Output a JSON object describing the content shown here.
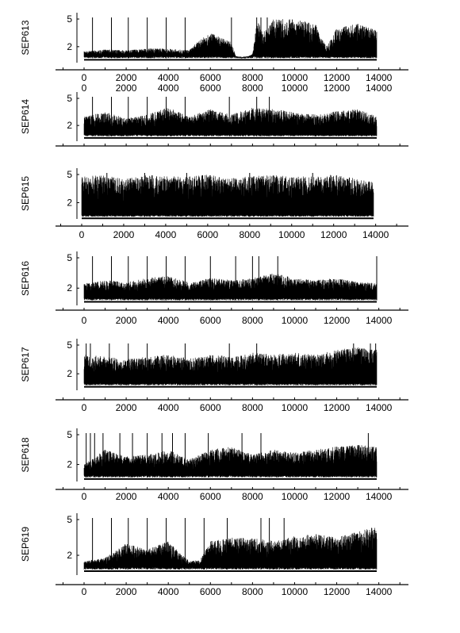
{
  "chart_data": [
    {
      "type": "line",
      "ylabel": "SEP613",
      "x_ticks": [
        0,
        2000,
        4000,
        6000,
        8000,
        10000,
        12000,
        14000
      ],
      "y_ticks": [
        2,
        5
      ],
      "ylim": [
        0,
        5.3
      ],
      "x_range": [
        0,
        13900
      ],
      "baseline": 0.75,
      "envelope_x": [
        0,
        1000,
        2000,
        3000,
        4000,
        5000,
        5500,
        6000,
        6500,
        7000,
        7200,
        7400,
        7600,
        8000,
        8200,
        8500,
        9000,
        10000,
        11000,
        11500,
        12000,
        13000,
        13900
      ],
      "envelope_y": [
        1.5,
        1.7,
        1.6,
        1.8,
        1.8,
        1.6,
        2.8,
        3.5,
        3.0,
        2.5,
        1.0,
        0.8,
        0.8,
        1.2,
        5.0,
        3.5,
        5.0,
        5.0,
        4.5,
        2.0,
        4.0,
        4.5,
        3.8
      ],
      "spikes": [
        400,
        1300,
        2100,
        3000,
        3900,
        4800,
        7000,
        8200,
        8400,
        8700
      ]
    },
    {
      "type": "line",
      "ylabel": "SEP614",
      "x_ticks": [
        0,
        2000,
        4000,
        6000,
        8000,
        10000,
        12000,
        14000
      ],
      "y_ticks": [
        2,
        5
      ],
      "ylim": [
        0,
        5.3
      ],
      "x_range": [
        0,
        13900
      ],
      "baseline": 0.8,
      "envelope_x": [
        0,
        1000,
        2000,
        3000,
        4000,
        5000,
        6000,
        7000,
        8000,
        9000,
        10000,
        11000,
        12000,
        13000,
        13900
      ],
      "envelope_y": [
        3.0,
        3.5,
        2.8,
        3.2,
        4.0,
        3.0,
        3.8,
        3.2,
        4.0,
        3.8,
        3.5,
        3.2,
        3.6,
        3.8,
        3.0
      ],
      "spikes": [
        400,
        1300,
        2100,
        3000,
        3900,
        4800,
        6900,
        8200,
        8800
      ]
    },
    {
      "type": "line",
      "ylabel": "SEP615",
      "x_ticks": [
        0,
        2000,
        4000,
        6000,
        8000,
        10000,
        12000,
        14000
      ],
      "y_ticks": [
        2,
        5
      ],
      "ylim": [
        0,
        5.3
      ],
      "x_range": [
        0,
        13900
      ],
      "baseline": 0.5,
      "envelope_x": [
        0,
        1000,
        2000,
        3000,
        4000,
        5000,
        6000,
        7000,
        8000,
        9000,
        10000,
        11000,
        12000,
        13000,
        13900
      ],
      "envelope_y": [
        4.8,
        5.0,
        4.5,
        5.0,
        4.8,
        4.8,
        5.0,
        4.6,
        4.8,
        5.0,
        4.8,
        4.8,
        5.0,
        4.6,
        4.2
      ],
      "spikes": [
        1200,
        3000,
        5000,
        8000,
        11000
      ]
    },
    {
      "type": "line",
      "ylabel": "SEP616",
      "x_ticks": [
        0,
        2000,
        4000,
        6000,
        8000,
        10000,
        12000,
        14000
      ],
      "y_ticks": [
        2,
        5
      ],
      "ylim": [
        0,
        5.3
      ],
      "x_range": [
        0,
        13900
      ],
      "baseline": 0.8,
      "envelope_x": [
        0,
        1000,
        2000,
        3000,
        4000,
        5000,
        6000,
        7000,
        8000,
        9000,
        10000,
        11000,
        12000,
        13000,
        13900
      ],
      "envelope_y": [
        2.5,
        2.8,
        2.6,
        3.0,
        3.2,
        2.6,
        3.0,
        2.8,
        3.0,
        3.5,
        3.0,
        2.8,
        3.0,
        2.6,
        2.5
      ],
      "spikes": [
        400,
        1300,
        2100,
        3000,
        3900,
        4800,
        6000,
        7200,
        8000,
        8300,
        9200,
        13900
      ]
    },
    {
      "type": "line",
      "ylabel": "SEP617",
      "x_ticks": [
        0,
        2000,
        4000,
        6000,
        8000,
        10000,
        12000,
        14000
      ],
      "y_ticks": [
        2,
        5
      ],
      "ylim": [
        0,
        5.3
      ],
      "x_range": [
        0,
        13900
      ],
      "baseline": 0.8,
      "envelope_x": [
        0,
        1000,
        2000,
        3000,
        4000,
        5000,
        6000,
        7000,
        8000,
        9000,
        10000,
        11000,
        12000,
        13000,
        13900
      ],
      "envelope_y": [
        4.0,
        3.8,
        3.5,
        3.8,
        4.0,
        3.6,
        4.0,
        3.8,
        4.2,
        4.0,
        4.2,
        4.0,
        4.5,
        4.8,
        4.5
      ],
      "spikes": [
        100,
        300,
        1200,
        2100,
        3000,
        4800,
        6900,
        8200,
        12800,
        13600,
        13850
      ]
    },
    {
      "type": "line",
      "ylabel": "SEP618",
      "x_ticks": [
        0,
        2000,
        4000,
        6000,
        8000,
        10000,
        12000,
        14000
      ],
      "y_ticks": [
        2,
        5
      ],
      "ylim": [
        0,
        5.3
      ],
      "x_range": [
        0,
        13900
      ],
      "baseline": 0.7,
      "envelope_x": [
        0,
        1000,
        2000,
        3000,
        4000,
        5000,
        6000,
        7000,
        8000,
        9000,
        10000,
        11000,
        12000,
        13000,
        13900
      ],
      "envelope_y": [
        2.0,
        3.5,
        2.8,
        3.0,
        3.5,
        2.5,
        3.5,
        3.8,
        3.0,
        3.5,
        3.2,
        3.5,
        3.8,
        4.0,
        3.8
      ],
      "spikes": [
        100,
        300,
        500,
        900,
        1700,
        2300,
        3000,
        3700,
        4200,
        4800,
        5900,
        7500,
        8400,
        13500
      ]
    },
    {
      "type": "line",
      "ylabel": "SEP619",
      "x_ticks": [
        0,
        2000,
        4000,
        6000,
        8000,
        10000,
        12000,
        14000
      ],
      "y_ticks": [
        2,
        5
      ],
      "ylim": [
        0,
        5.3
      ],
      "x_range": [
        0,
        13900
      ],
      "baseline": 0.8,
      "envelope_x": [
        0,
        1000,
        2000,
        3000,
        4000,
        5000,
        5500,
        6000,
        7000,
        8000,
        9000,
        10000,
        11000,
        12000,
        13000,
        13900
      ],
      "envelope_y": [
        1.5,
        1.8,
        3.0,
        2.5,
        3.2,
        1.5,
        1.6,
        3.2,
        3.5,
        3.5,
        3.2,
        3.6,
        3.8,
        3.5,
        4.0,
        4.5
      ],
      "spikes": [
        400,
        1300,
        2100,
        3000,
        3900,
        4800,
        5700,
        6800,
        8400,
        8800,
        9500
      ]
    }
  ]
}
